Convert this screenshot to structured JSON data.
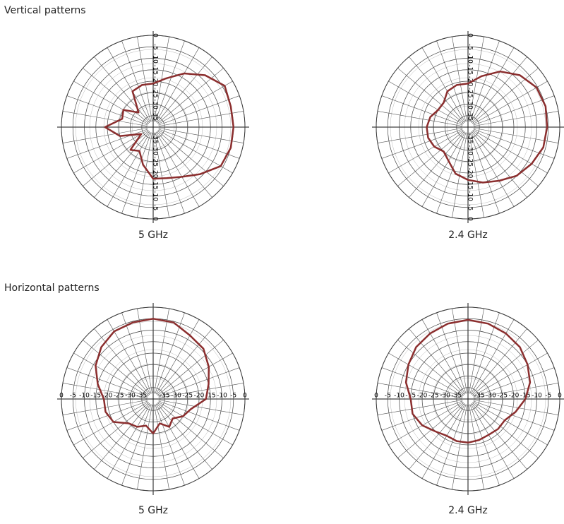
{
  "sections": [
    "Vertical patterns",
    "Horizontal patterns"
  ],
  "chart_data": [
    {
      "type": "polar",
      "title": "5 GHz",
      "label_axis": "vertical",
      "rlim": [
        -40,
        0
      ],
      "rticks": [
        0,
        -5,
        -10,
        -15,
        -20,
        -25,
        -30,
        -35
      ],
      "theta": [
        0,
        15,
        30,
        45,
        60,
        75,
        90,
        105,
        120,
        135,
        150,
        165,
        180,
        195,
        210,
        225,
        240,
        255,
        270,
        285,
        300,
        315,
        330,
        345
      ],
      "series": [
        {
          "color": "#8b2e2e",
          "values": [
            -21,
            -18,
            -13,
            -8,
            -4,
            -5,
            -5,
            -5,
            -6,
            -11,
            -15,
            -17,
            -17.5,
            -23,
            -28,
            -26,
            -34,
            -25,
            -19,
            -26,
            -25,
            -31,
            -22,
            -21
          ]
        }
      ]
    },
    {
      "type": "polar",
      "title": "2.4 GHz",
      "label_axis": "vertical",
      "rlim": [
        -40,
        0
      ],
      "rticks": [
        0,
        -5,
        -10,
        -15,
        -20,
        -25,
        -30,
        -35
      ],
      "theta": [
        0,
        15,
        30,
        45,
        60,
        75,
        90,
        105,
        120,
        135,
        150,
        165,
        180,
        195,
        210,
        225,
        240,
        255,
        270,
        285,
        300,
        315,
        330,
        345
      ],
      "series": [
        {
          "color": "#8b2e2e",
          "values": [
            -21,
            -17,
            -12,
            -8,
            -5.5,
            -5,
            -5.5,
            -6,
            -8,
            -10,
            -13,
            -15,
            -17,
            -19,
            -23,
            -25,
            -23,
            -22,
            -22,
            -23,
            -25,
            -25,
            -22,
            -21
          ]
        }
      ]
    },
    {
      "type": "polar",
      "title": "5 GHz",
      "label_axis": "horizontal",
      "rlim": [
        -40,
        0
      ],
      "rticks": [
        0,
        -5,
        -10,
        -15,
        -20,
        -25,
        -30,
        -35
      ],
      "theta": [
        0,
        15,
        30,
        45,
        60,
        75,
        90,
        105,
        120,
        135,
        150,
        165,
        180,
        195,
        210,
        225,
        240,
        255,
        270,
        285,
        300,
        315,
        330,
        345
      ],
      "series": [
        {
          "color": "#8b2e2e",
          "values": [
            -5,
            -5.5,
            -8,
            -9,
            -12,
            -15,
            -17,
            -23,
            -25,
            -28,
            -26,
            -29,
            -25,
            -28,
            -26,
            -25,
            -20,
            -18.5,
            -18.5,
            -15,
            -11,
            -8,
            -6,
            -5.5
          ]
        }
      ]
    },
    {
      "type": "polar",
      "title": "2.4 GHz",
      "label_axis": "horizontal",
      "rlim": [
        -40,
        0
      ],
      "rticks": [
        0,
        -5,
        -10,
        -15,
        -20,
        -25,
        -30,
        -35
      ],
      "theta": [
        0,
        15,
        30,
        45,
        60,
        75,
        90,
        105,
        120,
        135,
        150,
        165,
        180,
        195,
        210,
        225,
        240,
        255,
        270,
        285,
        300,
        315,
        330,
        345
      ],
      "series": [
        {
          "color": "#8b2e2e",
          "values": [
            -5.5,
            -6,
            -7,
            -8,
            -10,
            -12,
            -15,
            -18.5,
            -21.5,
            -21.5,
            -22,
            -21.5,
            -21,
            -21,
            -21.5,
            -20,
            -17,
            -15,
            -15,
            -12,
            -10,
            -8,
            -7,
            -6
          ]
        }
      ]
    }
  ]
}
